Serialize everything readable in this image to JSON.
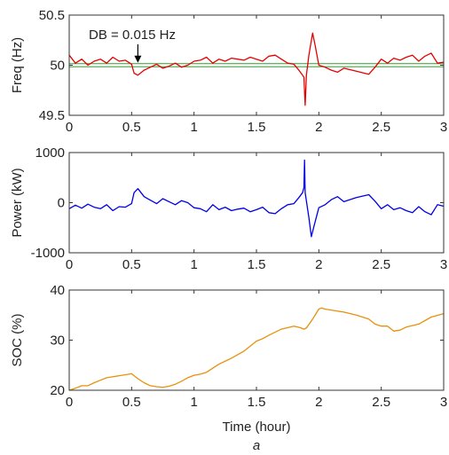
{
  "caption": "a",
  "colors": {
    "freq": "#e60000",
    "deadband": "#339933",
    "power": "#0000e6",
    "soc": "#e8900c"
  },
  "chart_data": [
    {
      "type": "line",
      "ylabel": "Freq (Hz)",
      "xlabel": "",
      "xlim": [
        0,
        3
      ],
      "ylim": [
        49.5,
        50.5
      ],
      "xticks": [
        "0",
        "0.5",
        "1",
        "1.5",
        "2",
        "2.5",
        "3"
      ],
      "yticks": [
        "49.5",
        "50",
        "50.5"
      ],
      "hlines": [
        49.985,
        50.015
      ],
      "annotation": {
        "text": "DB = 0.015 Hz",
        "x": 0.55,
        "y": 50.015
      },
      "series": [
        {
          "x": [
            0,
            0.05,
            0.1,
            0.15,
            0.2,
            0.25,
            0.3,
            0.35,
            0.4,
            0.45,
            0.5,
            0.52,
            0.55,
            0.6,
            0.65,
            0.7,
            0.75,
            0.8,
            0.85,
            0.9,
            0.95,
            1.0,
            1.05,
            1.1,
            1.15,
            1.2,
            1.25,
            1.3,
            1.35,
            1.4,
            1.45,
            1.5,
            1.55,
            1.6,
            1.65,
            1.7,
            1.75,
            1.8,
            1.84,
            1.87,
            1.88,
            1.89,
            1.9,
            1.92,
            1.95,
            1.97,
            2.0,
            2.05,
            2.1,
            2.15,
            2.2,
            2.3,
            2.4,
            2.45,
            2.5,
            2.55,
            2.6,
            2.65,
            2.7,
            2.75,
            2.8,
            2.85,
            2.9,
            2.95,
            3.0
          ],
          "values": [
            50.1,
            50.02,
            50.06,
            50.0,
            50.04,
            50.06,
            50.02,
            50.08,
            50.04,
            50.05,
            50.01,
            49.92,
            49.9,
            49.95,
            49.98,
            50.01,
            49.97,
            49.99,
            50.02,
            49.98,
            50.0,
            50.04,
            50.05,
            50.08,
            50.02,
            50.06,
            50.04,
            50.07,
            50.06,
            50.05,
            50.08,
            50.06,
            50.04,
            50.09,
            50.1,
            50.06,
            50.02,
            50.01,
            49.95,
            49.9,
            49.88,
            49.6,
            49.9,
            50.1,
            50.32,
            50.2,
            50.0,
            49.98,
            49.95,
            49.93,
            49.97,
            49.94,
            49.91,
            49.98,
            50.06,
            50.02,
            50.07,
            50.05,
            50.08,
            50.1,
            50.04,
            50.09,
            50.12,
            50.02,
            50.03
          ]
        }
      ]
    },
    {
      "type": "line",
      "ylabel": "Power (kW)",
      "xlabel": "",
      "xlim": [
        0,
        3
      ],
      "ylim": [
        -1000,
        1000
      ],
      "xticks": [
        "0",
        "0.5",
        "1",
        "1.5",
        "2",
        "2.5",
        "3"
      ],
      "yticks": [
        "-1000",
        "0",
        "1000"
      ],
      "series": [
        {
          "x": [
            0,
            0.05,
            0.1,
            0.15,
            0.2,
            0.25,
            0.3,
            0.35,
            0.4,
            0.45,
            0.5,
            0.52,
            0.55,
            0.6,
            0.65,
            0.7,
            0.75,
            0.8,
            0.85,
            0.9,
            0.95,
            1.0,
            1.05,
            1.1,
            1.15,
            1.2,
            1.25,
            1.3,
            1.35,
            1.4,
            1.45,
            1.5,
            1.55,
            1.6,
            1.65,
            1.7,
            1.75,
            1.8,
            1.84,
            1.87,
            1.88,
            1.885,
            1.89,
            1.92,
            1.94,
            1.96,
            2.0,
            2.05,
            2.1,
            2.15,
            2.2,
            2.3,
            2.4,
            2.45,
            2.5,
            2.55,
            2.6,
            2.65,
            2.7,
            2.75,
            2.8,
            2.85,
            2.9,
            2.95,
            3.0
          ],
          "values": [
            -120,
            -50,
            -110,
            -30,
            -90,
            -120,
            -40,
            -160,
            -80,
            -90,
            -20,
            200,
            280,
            120,
            50,
            -20,
            80,
            20,
            -40,
            40,
            0,
            -100,
            -120,
            -180,
            -40,
            -140,
            -90,
            -160,
            -130,
            -110,
            -180,
            -140,
            -90,
            -200,
            -220,
            -120,
            -40,
            -20,
            100,
            200,
            300,
            850,
            200,
            -300,
            -680,
            -480,
            -100,
            -40,
            60,
            120,
            20,
            100,
            160,
            30,
            -120,
            -40,
            -140,
            -100,
            -160,
            -200,
            -80,
            -180,
            -240,
            -40,
            -70
          ]
        }
      ]
    },
    {
      "type": "line",
      "ylabel": "SOC (%)",
      "xlabel": "Time (hour)",
      "xlim": [
        0,
        3
      ],
      "ylim": [
        20,
        40
      ],
      "xticks": [
        "0",
        "0.5",
        "1",
        "1.5",
        "2",
        "2.5",
        "3"
      ],
      "yticks": [
        "20",
        "30",
        "40"
      ],
      "series": [
        {
          "x": [
            0,
            0.05,
            0.1,
            0.15,
            0.2,
            0.25,
            0.3,
            0.4,
            0.5,
            0.55,
            0.6,
            0.65,
            0.7,
            0.75,
            0.8,
            0.85,
            0.9,
            0.95,
            1.0,
            1.05,
            1.1,
            1.15,
            1.2,
            1.3,
            1.4,
            1.5,
            1.55,
            1.6,
            1.7,
            1.8,
            1.85,
            1.88,
            1.9,
            1.95,
            2.0,
            2.02,
            2.05,
            2.1,
            2.2,
            2.3,
            2.4,
            2.45,
            2.5,
            2.55,
            2.6,
            2.65,
            2.7,
            2.8,
            2.9,
            3.0
          ],
          "values": [
            20.0,
            20.4,
            20.9,
            20.9,
            21.5,
            22.0,
            22.5,
            22.9,
            23.3,
            22.3,
            21.5,
            20.9,
            20.7,
            20.6,
            20.8,
            21.2,
            21.8,
            22.5,
            23.0,
            23.2,
            23.6,
            24.4,
            25.2,
            26.4,
            27.8,
            29.8,
            30.3,
            31.0,
            32.2,
            32.8,
            32.5,
            32.2,
            32.4,
            34.2,
            36.2,
            36.4,
            36.2,
            36.0,
            35.6,
            35.0,
            34.2,
            33.2,
            32.8,
            32.8,
            31.8,
            32.0,
            32.6,
            33.2,
            34.6,
            35.3
          ]
        }
      ]
    }
  ]
}
